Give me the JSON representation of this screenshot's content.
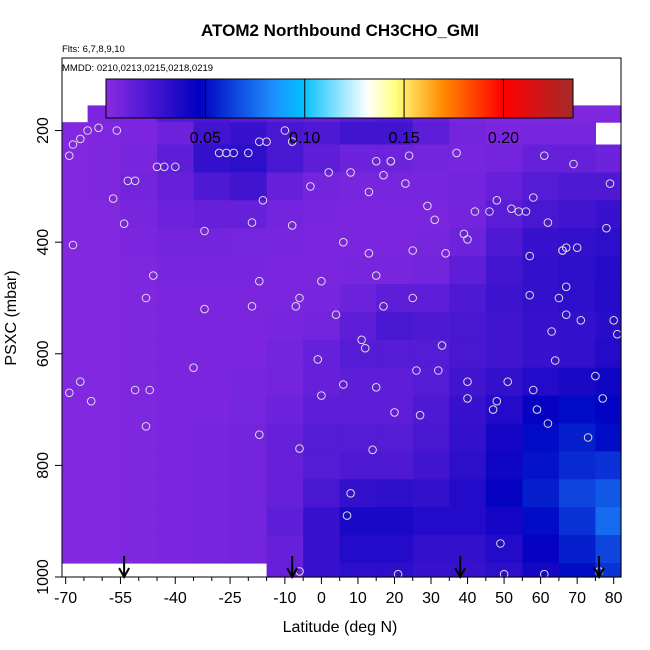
{
  "chart_data": {
    "type": "heatmap",
    "title": "ATOM2 Northbound CH3CHO_GMI",
    "annotation_flights": "Flts: 6,7,8,9,10",
    "annotation_dates": "MMDD: 0210,0213,0215,0218,0219",
    "xlabel": "Latitude (deg N)",
    "ylabel": "PSXC (mbar)",
    "xlim": [
      -71,
      82
    ],
    "ylim": [
      1000,
      70
    ],
    "y_inverted": true,
    "x_ticks": [
      -70,
      -55,
      -40,
      -25,
      -10,
      0,
      10,
      20,
      30,
      40,
      50,
      60,
      70,
      80
    ],
    "x_tick_labels": [
      "-70",
      "-55",
      "-40",
      "-25",
      "-10",
      "0",
      "10",
      "20",
      "30",
      "40",
      "50",
      "60",
      "70",
      "80"
    ],
    "x_minor_ticks": [
      -65,
      -60,
      -50,
      -45,
      -35,
      -30,
      -20,
      -15,
      -5,
      5,
      15,
      25,
      35,
      45,
      55,
      65,
      75
    ],
    "y_ticks": [
      200,
      400,
      600,
      800,
      1000
    ],
    "y_tick_labels": [
      "200",
      "400",
      "600",
      "800",
      "1000"
    ],
    "colorbar": {
      "range": [
        0.0,
        0.235
      ],
      "ticks": [
        0.05,
        0.1,
        0.15,
        0.2
      ],
      "tick_labels": [
        "0.05",
        "0.10",
        "0.15",
        "0.20"
      ],
      "colors": [
        "#8a2be2",
        "#0000c0",
        "#1e90ff",
        "#00bfff",
        "#ffffff",
        "#ffff80",
        "#ff8c00",
        "#ff0000",
        "#a52a2a"
      ],
      "stops": [
        0.0,
        0.2,
        0.36,
        0.42,
        0.56,
        0.62,
        0.72,
        0.85,
        1.0
      ]
    },
    "pressure_levels": [
      170,
      200,
      250,
      300,
      350,
      400,
      450,
      500,
      550,
      600,
      650,
      700,
      750,
      800,
      850,
      900,
      950,
      1000
    ],
    "latitude_bins": [
      -68,
      -60,
      -50,
      -40,
      -30,
      -20,
      -10,
      0,
      10,
      20,
      30,
      40,
      50,
      60,
      70,
      80
    ],
    "values": [
      [
        null,
        0.005,
        0.005,
        0.018,
        0.022,
        0.018,
        0.015,
        0.012,
        0.018,
        0.02,
        0.012,
        0.005,
        0.004,
        0.004,
        0.004,
        0.004
      ],
      [
        0.003,
        0.004,
        0.005,
        0.01,
        0.025,
        0.028,
        0.022,
        0.02,
        0.025,
        0.025,
        0.015,
        0.008,
        0.005,
        0.006,
        0.006,
        null
      ],
      [
        0.003,
        0.004,
        0.006,
        0.015,
        0.03,
        0.032,
        0.022,
        0.015,
        0.01,
        0.01,
        0.008,
        0.006,
        0.008,
        0.012,
        0.012,
        0.01
      ],
      [
        0.003,
        0.004,
        0.008,
        0.012,
        0.02,
        0.025,
        0.012,
        0.008,
        0.006,
        0.006,
        0.006,
        0.008,
        0.012,
        0.018,
        0.02,
        0.02
      ],
      [
        0.003,
        0.003,
        0.006,
        0.01,
        0.012,
        0.012,
        0.008,
        0.006,
        0.005,
        0.005,
        0.005,
        0.008,
        0.016,
        0.022,
        0.025,
        0.028
      ],
      [
        0.003,
        0.003,
        0.005,
        0.008,
        0.008,
        0.007,
        0.006,
        0.005,
        0.005,
        0.005,
        0.006,
        0.01,
        0.02,
        0.028,
        0.03,
        0.032
      ],
      [
        0.003,
        0.003,
        0.004,
        0.006,
        0.006,
        0.006,
        0.005,
        0.005,
        0.006,
        0.006,
        0.008,
        0.015,
        0.024,
        0.03,
        0.032,
        0.034
      ],
      [
        0.003,
        0.003,
        0.004,
        0.005,
        0.005,
        0.005,
        0.005,
        0.006,
        0.01,
        0.015,
        0.015,
        0.02,
        0.026,
        0.03,
        0.032,
        0.035
      ],
      [
        0.003,
        0.003,
        0.004,
        0.005,
        0.005,
        0.005,
        0.006,
        0.008,
        0.015,
        0.022,
        0.02,
        0.022,
        0.025,
        0.028,
        0.03,
        0.033
      ],
      [
        0.003,
        0.003,
        0.004,
        0.005,
        0.005,
        0.005,
        0.008,
        0.012,
        0.018,
        0.018,
        0.018,
        0.022,
        0.025,
        0.028,
        0.03,
        0.035
      ],
      [
        0.003,
        0.003,
        0.004,
        0.005,
        0.005,
        0.006,
        0.008,
        0.012,
        0.015,
        0.015,
        0.018,
        0.025,
        0.03,
        0.035,
        0.038,
        0.042
      ],
      [
        0.003,
        0.003,
        0.004,
        0.005,
        0.005,
        0.007,
        0.01,
        0.015,
        0.015,
        0.015,
        0.02,
        0.028,
        0.035,
        0.045,
        0.05,
        0.048
      ],
      [
        0.003,
        0.003,
        0.004,
        0.005,
        0.006,
        0.008,
        0.012,
        0.018,
        0.018,
        0.018,
        0.022,
        0.03,
        0.04,
        0.05,
        0.055,
        0.05
      ],
      [
        0.003,
        0.003,
        0.004,
        0.005,
        0.006,
        0.008,
        0.012,
        0.018,
        0.02,
        0.02,
        0.025,
        0.032,
        0.042,
        0.052,
        0.058,
        0.06
      ],
      [
        0.003,
        0.003,
        0.004,
        0.005,
        0.006,
        0.008,
        0.012,
        0.022,
        0.03,
        0.032,
        0.03,
        0.035,
        0.045,
        0.055,
        0.065,
        0.07
      ],
      [
        0.003,
        0.003,
        0.004,
        0.005,
        0.006,
        0.008,
        0.015,
        0.028,
        0.038,
        0.038,
        0.035,
        0.035,
        0.04,
        0.05,
        0.06,
        0.075
      ],
      [
        0.003,
        0.003,
        0.004,
        0.005,
        0.006,
        0.008,
        0.012,
        0.028,
        0.035,
        0.035,
        0.03,
        0.03,
        0.035,
        0.045,
        0.055,
        0.065
      ],
      [
        null,
        null,
        null,
        null,
        null,
        null,
        0.012,
        0.028,
        0.032,
        0.032,
        0.028,
        0.028,
        0.032,
        0.04,
        0.05,
        0.06
      ]
    ],
    "observations": [
      [
        -69,
        245
      ],
      [
        -68,
        225
      ],
      [
        -66,
        215
      ],
      [
        -64,
        200
      ],
      [
        -61,
        195
      ],
      [
        -56,
        200
      ],
      [
        -68,
        405
      ],
      [
        -66,
        650
      ],
      [
        -69,
        670
      ],
      [
        -63,
        685
      ],
      [
        -57,
        322
      ],
      [
        -53,
        290
      ],
      [
        -51,
        290
      ],
      [
        -54,
        367
      ],
      [
        -48,
        500
      ],
      [
        -46,
        460
      ],
      [
        -47,
        665
      ],
      [
        -48,
        730
      ],
      [
        -45,
        265
      ],
      [
        -43,
        265
      ],
      [
        -40,
        265
      ],
      [
        -51,
        665
      ],
      [
        -35,
        625
      ],
      [
        -32,
        520
      ],
      [
        -32,
        380
      ],
      [
        -28,
        240
      ],
      [
        -26,
        240
      ],
      [
        -24,
        240
      ],
      [
        -20,
        240
      ],
      [
        -17,
        220
      ],
      [
        -15,
        220
      ],
      [
        -19,
        365
      ],
      [
        -19,
        515
      ],
      [
        -17,
        470
      ],
      [
        -17,
        745
      ],
      [
        -16,
        325
      ],
      [
        -10,
        200
      ],
      [
        -8,
        220
      ],
      [
        -8,
        370
      ],
      [
        -7,
        515
      ],
      [
        -6,
        500
      ],
      [
        -6,
        770
      ],
      [
        -6,
        990
      ],
      [
        -3,
        300
      ],
      [
        -1,
        610
      ],
      [
        0,
        675
      ],
      [
        0,
        470
      ],
      [
        2,
        275
      ],
      [
        4,
        530
      ],
      [
        6,
        400
      ],
      [
        8,
        275
      ],
      [
        6,
        655
      ],
      [
        8,
        850
      ],
      [
        7,
        890
      ],
      [
        11,
        575
      ],
      [
        12,
        590
      ],
      [
        13,
        420
      ],
      [
        13,
        310
      ],
      [
        15,
        255
      ],
      [
        15,
        460
      ],
      [
        15,
        660
      ],
      [
        14,
        772
      ],
      [
        17,
        515
      ],
      [
        17,
        280
      ],
      [
        19,
        255
      ],
      [
        19,
        255
      ],
      [
        20,
        705
      ],
      [
        21,
        995
      ],
      [
        24,
        245
      ],
      [
        23,
        295
      ],
      [
        25,
        415
      ],
      [
        25,
        500
      ],
      [
        26,
        630
      ],
      [
        27,
        710
      ],
      [
        29,
        335
      ],
      [
        31,
        360
      ],
      [
        32,
        630
      ],
      [
        33,
        585
      ],
      [
        34,
        420
      ],
      [
        37,
        240
      ],
      [
        39,
        385
      ],
      [
        40,
        395
      ],
      [
        40,
        650
      ],
      [
        40,
        680
      ],
      [
        42,
        345
      ],
      [
        46,
        345
      ],
      [
        47,
        700
      ],
      [
        48,
        685
      ],
      [
        48,
        325
      ],
      [
        49,
        940
      ],
      [
        50,
        995
      ],
      [
        51,
        650
      ],
      [
        52,
        340
      ],
      [
        54,
        345
      ],
      [
        56,
        345
      ],
      [
        57,
        495
      ],
      [
        58,
        320
      ],
      [
        58,
        665
      ],
      [
        57,
        425
      ],
      [
        59,
        700
      ],
      [
        61,
        995
      ],
      [
        61,
        245
      ],
      [
        62,
        365
      ],
      [
        62,
        725
      ],
      [
        63,
        560
      ],
      [
        64,
        612
      ],
      [
        65,
        500
      ],
      [
        66,
        415
      ],
      [
        66,
        415
      ],
      [
        67,
        480
      ],
      [
        67,
        530
      ],
      [
        67,
        410
      ],
      [
        69,
        260
      ],
      [
        70,
        410
      ],
      [
        71,
        540
      ],
      [
        73,
        750
      ],
      [
        75,
        640
      ],
      [
        76,
        990
      ],
      [
        77,
        680
      ],
      [
        78,
        375
      ],
      [
        79,
        295
      ],
      [
        80,
        540
      ],
      [
        81,
        565
      ]
    ],
    "arrows_lat": [
      -54,
      -8,
      38,
      76
    ]
  }
}
